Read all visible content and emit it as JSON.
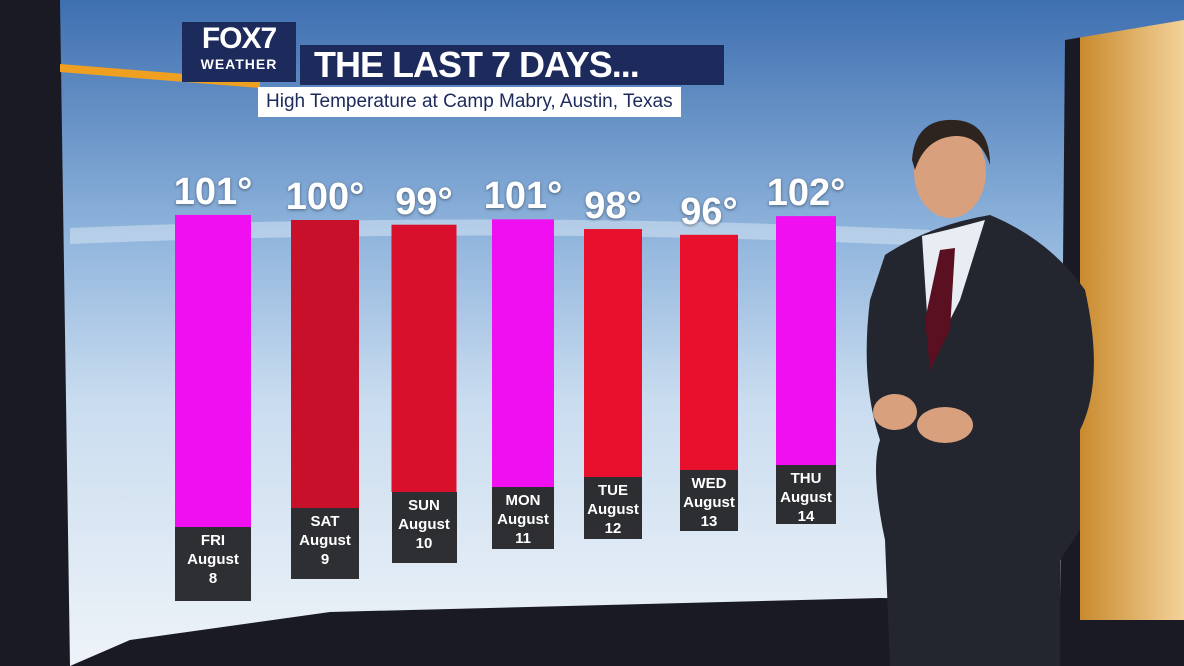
{
  "logo": {
    "brand": "FOX7",
    "label": "WEATHER"
  },
  "chart_data": {
    "type": "bar",
    "title": "THE LAST 7 DAYS...",
    "subtitle": "High Temperature at Camp Mabry, Austin, Texas",
    "categories": [
      "FRI\nAugust\n8",
      "SAT\nAugust\n9",
      "SUN\nAugust\n10",
      "MON\nAugust\n11",
      "TUE\nAugust\n12",
      "WED\nAugust\n13",
      "THU\nAugust\n14"
    ],
    "values": [
      101,
      100,
      99,
      101,
      98,
      96,
      102
    ],
    "value_labels": [
      "101°",
      "100°",
      "99°",
      "101°",
      "98°",
      "96°",
      "102°"
    ],
    "colors": [
      "#f00ff0",
      "#c8102a",
      "#d8102c",
      "#f00ff0",
      "#e8102c",
      "#e8102c",
      "#f00ff0"
    ]
  }
}
